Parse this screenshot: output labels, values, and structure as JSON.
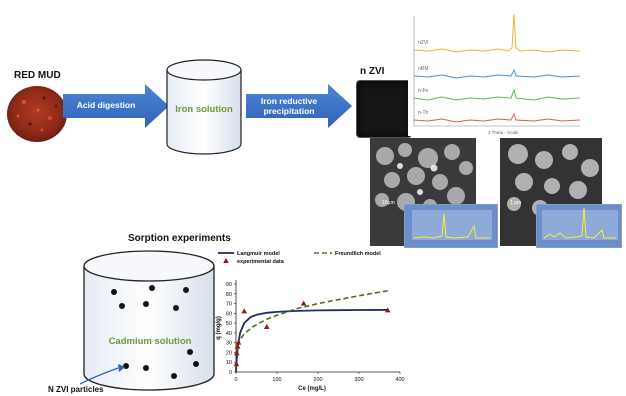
{
  "process": {
    "red_mud_label": "RED MUD",
    "arrow1_label": "Acid digestion",
    "cylinder1_label": "Iron solution",
    "arrow2_label": "Iron reductive precipitation",
    "nzvi_label": "n ZVI"
  },
  "xrd": {
    "trace_labels": [
      "nZVI",
      "nRM",
      "n-Fe",
      "n-Th"
    ],
    "trace_colors": [
      "#f2b233",
      "#4a90d9",
      "#5cb85c",
      "#e05a4f"
    ],
    "axis_label": "2 Theta - Scale"
  },
  "sem": {
    "scale_left": "10μm",
    "scale_right": "1 μm"
  },
  "sorption": {
    "title": "Sorption experiments",
    "cylinder_label": "Cadmium solution",
    "particles_label": "N ZVI particles"
  },
  "chart_data": {
    "type": "scatter",
    "xlabel": "Ce (mg/L)",
    "ylabel": "q (mg/g)",
    "xlim": [
      0,
      400
    ],
    "ylim": [
      0,
      90
    ],
    "xticks": [
      0,
      100,
      200,
      300,
      400
    ],
    "yticks": [
      0,
      10,
      20,
      30,
      40,
      50,
      60,
      70,
      80,
      90
    ],
    "series": [
      {
        "name": "Langmuir model",
        "kind": "line",
        "color": "#1f2f5a",
        "x": [
          0,
          2,
          5,
          10,
          20,
          35,
          50,
          75,
          100,
          150,
          200,
          250,
          300,
          370
        ],
        "y": [
          0,
          14,
          28,
          40,
          50,
          56,
          58.5,
          60.5,
          61.5,
          62.5,
          63,
          63.2,
          63.4,
          63.5
        ]
      },
      {
        "name": "Freundlich model",
        "kind": "dashed",
        "color": "#4e6b2a",
        "x": [
          1,
          5,
          10,
          20,
          40,
          75,
          100,
          150,
          200,
          250,
          300,
          370
        ],
        "y": [
          19,
          28,
          33,
          39,
          46,
          54,
          58,
          65,
          70,
          74,
          78,
          83
        ]
      },
      {
        "name": "experimental data",
        "kind": "marker",
        "color": "#8b1a1a",
        "x": [
          1,
          2,
          4,
          6,
          20,
          75,
          165,
          370
        ],
        "y": [
          8,
          19,
          26,
          30,
          62,
          46,
          70,
          63
        ]
      }
    ],
    "legend": "top"
  }
}
